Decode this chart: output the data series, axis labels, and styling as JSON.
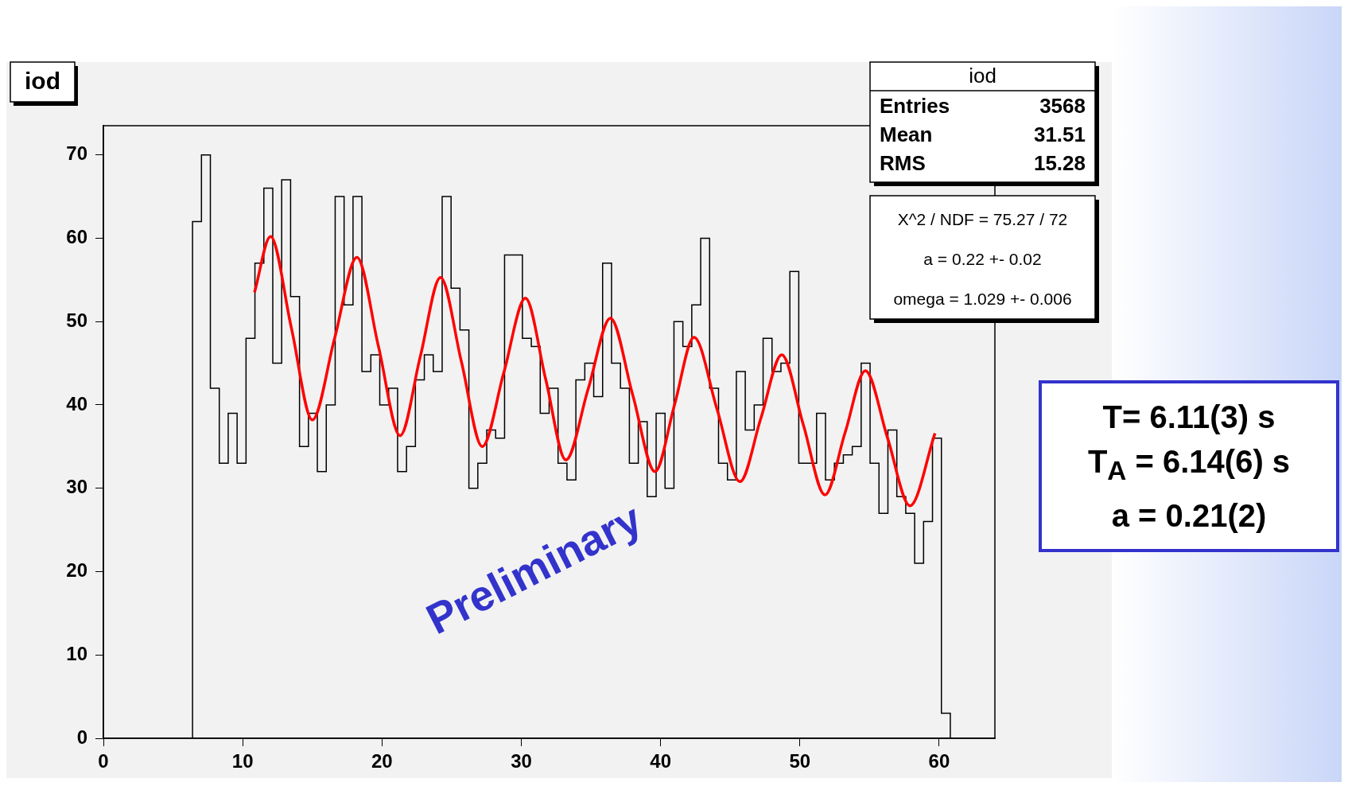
{
  "chart_data": {
    "type": "histogram",
    "title": "iod",
    "bins": [
      6.4,
      7.04,
      7.68,
      8.32,
      8.96,
      9.6,
      10.24,
      10.88,
      11.52,
      12.16,
      12.8,
      13.44,
      14.08,
      14.72,
      15.36,
      16,
      16.64,
      17.28,
      17.92,
      18.56,
      19.2,
      19.84,
      20.48,
      21.12,
      21.76,
      22.4,
      23.04,
      23.68,
      24.32,
      24.96,
      25.6,
      26.24,
      26.88,
      27.52,
      28.16,
      28.8,
      29.44,
      30.08,
      30.72,
      31.36,
      32,
      32.64,
      33.28,
      33.92,
      34.56,
      35.2,
      35.84,
      36.48,
      37.12,
      37.76,
      38.4,
      39.04,
      39.68,
      40.32,
      40.96,
      41.6,
      42.24,
      42.88,
      43.52,
      44.16,
      44.8,
      45.44,
      46.08,
      46.72,
      47.36,
      48,
      48.64,
      49.28,
      49.92,
      50.56,
      51.2,
      51.84,
      52.48,
      53.12,
      53.76,
      54.4,
      55.04,
      55.68,
      56.32,
      56.96,
      57.6,
      58.24,
      58.88,
      59.52,
      60.16,
      60.8
    ],
    "color": "#000000",
    "values": [
      62,
      70,
      42,
      33,
      39,
      33,
      48,
      57,
      66,
      45,
      67,
      53,
      35,
      39,
      32,
      40,
      65,
      52,
      65,
      44,
      46,
      40,
      42,
      32,
      35,
      43,
      46,
      44,
      65,
      54,
      49,
      30,
      33,
      37,
      36,
      58,
      58,
      48,
      47,
      39,
      42,
      33,
      31,
      43,
      45,
      41,
      57,
      45,
      42,
      33,
      38,
      29,
      39,
      30,
      50,
      47,
      52,
      60,
      42,
      33,
      31,
      44,
      37,
      40,
      48,
      44,
      45,
      56,
      33,
      33,
      39,
      31,
      33,
      34,
      35,
      45,
      33,
      27,
      37,
      29,
      27,
      21,
      26,
      36,
      3
    ],
    "series": [
      {
        "type": "line",
        "color": "#ff0000",
        "x": [
          10.85,
          12.0,
          13.5,
          15.0,
          16.6,
          18.2,
          19.75,
          21.3,
          22.75,
          24.2,
          25.7,
          27.2,
          28.75,
          30.3,
          31.75,
          33.2,
          34.8,
          36.4,
          38.0,
          39.6,
          41.0,
          42.4,
          44.05,
          45.7,
          47.2,
          48.7,
          50.25,
          51.8,
          53.25,
          54.7,
          56.3,
          57.9,
          59.7
        ],
        "values": [
          53.5,
          60.2,
          49.2,
          38.2,
          48.0,
          57.7,
          47.0,
          36.3,
          45.8,
          55.3,
          45.2,
          35.0,
          43.9,
          52.8,
          43.1,
          33.4,
          41.9,
          50.4,
          41.2,
          32.0,
          40.0,
          48.1,
          39.5,
          30.8,
          38.4,
          46.0,
          37.6,
          29.2,
          36.7,
          44.1,
          36.0,
          27.9,
          36.6
        ]
      }
    ],
    "xlim": [
      0,
      64
    ],
    "xticks": [
      0,
      10,
      20,
      30,
      40,
      50,
      60
    ],
    "ylim": [
      0,
      73.5
    ],
    "yticks": [
      0,
      10,
      20,
      30,
      40,
      50,
      60,
      70
    ],
    "grid": false,
    "legend": false,
    "annotations": [
      "iod",
      "Entries",
      "3568",
      "Mean",
      "31.51",
      "RMS",
      "15.28",
      "X^2 / NDF = 75.27 / 72",
      "a = 0.22 +- 0.02",
      "omega = 1.029 +- 0.006",
      "Preliminary",
      "T= 6.11(3) s",
      "T$_{A}$ = 6.14(6) s",
      "a = 0.21(2)"
    ]
  }
}
